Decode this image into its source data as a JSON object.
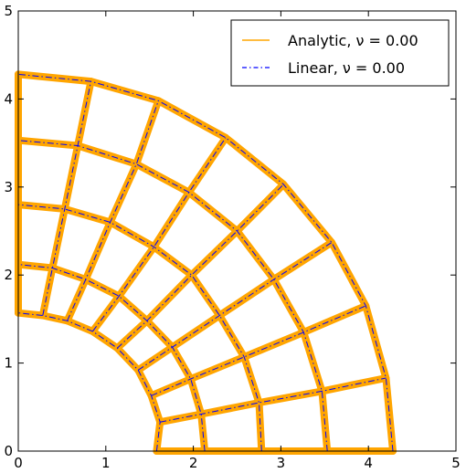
{
  "chart_data": {
    "type": "line",
    "xlim": [
      0,
      5
    ],
    "ylim": [
      0,
      5
    ],
    "x_ticks": [
      "0",
      "1",
      "2",
      "3",
      "4",
      "5"
    ],
    "y_ticks": [
      "0",
      "1",
      "2",
      "3",
      "4",
      "5"
    ],
    "grid": false,
    "legend_position": "top-right",
    "series": [
      {
        "name": "Analytic, ν = 0.00",
        "style": "solid",
        "color": "#ffa500"
      },
      {
        "name": "Linear, ν = 0.00",
        "style": "dashdot",
        "color": "#0000ff"
      }
    ],
    "mesh": {
      "description_of_data": "deformed quarter-annulus mesh, nodes [radial index][angular index], angle from x-axis 0..90 deg",
      "nodes": [
        [
          [
            1.58,
            0.0
          ],
          [
            1.62,
            0.33
          ],
          [
            1.52,
            0.63
          ],
          [
            1.37,
            0.92
          ],
          [
            1.13,
            1.17
          ],
          [
            0.85,
            1.36
          ],
          [
            0.56,
            1.48
          ],
          [
            0.28,
            1.54
          ],
          [
            0.0,
            1.57
          ]
        ],
        [
          [
            2.13,
            0.0
          ],
          [
            2.09,
            0.42
          ],
          [
            1.97,
            0.82
          ],
          [
            1.76,
            1.18
          ],
          [
            1.47,
            1.48
          ],
          [
            1.15,
            1.76
          ],
          [
            0.77,
            1.95
          ],
          [
            0.39,
            2.08
          ],
          [
            0.0,
            2.12
          ]
        ],
        [
          [
            2.78,
            0.0
          ],
          [
            2.75,
            0.55
          ],
          [
            2.58,
            1.07
          ],
          [
            2.3,
            1.54
          ],
          [
            1.98,
            2.0
          ],
          [
            1.55,
            2.32
          ],
          [
            1.05,
            2.6
          ],
          [
            0.53,
            2.75
          ],
          [
            0.0,
            2.8
          ]
        ],
        [
          [
            3.53,
            0.0
          ],
          [
            3.47,
            0.68
          ],
          [
            3.26,
            1.35
          ],
          [
            2.92,
            1.95
          ],
          [
            2.5,
            2.5
          ],
          [
            1.95,
            2.94
          ],
          [
            1.35,
            3.26
          ],
          [
            0.68,
            3.47
          ],
          [
            0.0,
            3.53
          ]
        ],
        [
          [
            4.28,
            0.0
          ],
          [
            4.2,
            0.83
          ],
          [
            3.97,
            1.65
          ],
          [
            3.58,
            2.37
          ],
          [
            3.03,
            3.03
          ],
          [
            2.37,
            3.56
          ],
          [
            1.6,
            3.98
          ],
          [
            0.83,
            4.2
          ],
          [
            0.0,
            4.28
          ]
        ]
      ]
    }
  },
  "colors": {
    "analytic": "#ffa500",
    "linear": "#0000ff",
    "axes": "#000000",
    "background": "#ffffff"
  }
}
